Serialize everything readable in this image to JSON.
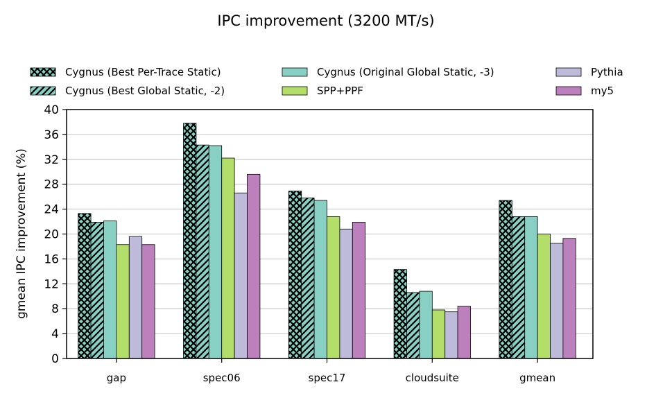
{
  "chart_data": {
    "type": "bar",
    "title": "IPC improvement (3200 MT/s)",
    "xlabel": "",
    "ylabel": "gmean IPC improvement (%)",
    "ylim": [
      0,
      40
    ],
    "yticks": [
      0,
      4,
      8,
      12,
      16,
      20,
      24,
      28,
      32,
      36,
      40
    ],
    "grid": "horizontal",
    "legend_position": "top",
    "categories": [
      "gap",
      "spec06",
      "spec17",
      "cloudsuite",
      "gmean"
    ],
    "series": [
      {
        "name": "Cygnus (Best Per-Trace Static)",
        "color": "#88d0c3",
        "pattern": "crosshatch",
        "values": [
          23.3,
          37.8,
          26.9,
          14.3,
          25.4
        ]
      },
      {
        "name": "Cygnus (Best Global Static, -2)",
        "color": "#88d0c3",
        "pattern": "diagonal",
        "values": [
          21.9,
          34.3,
          25.8,
          10.6,
          22.8
        ]
      },
      {
        "name": "Cygnus (Original Global Static, -3)",
        "color": "#88d0c3",
        "pattern": "none",
        "values": [
          22.1,
          34.2,
          25.4,
          10.8,
          22.8
        ]
      },
      {
        "name": "SPP+PPF",
        "color": "#b3de69",
        "pattern": "none",
        "values": [
          18.3,
          32.2,
          22.8,
          7.8,
          20.0
        ]
      },
      {
        "name": "Pythia",
        "color": "#bebada",
        "pattern": "none",
        "values": [
          19.6,
          26.6,
          20.8,
          7.5,
          18.5
        ]
      },
      {
        "name": "my5",
        "color": "#bc80bd",
        "pattern": "none",
        "values": [
          18.3,
          29.6,
          21.9,
          8.4,
          19.3
        ]
      }
    ]
  }
}
